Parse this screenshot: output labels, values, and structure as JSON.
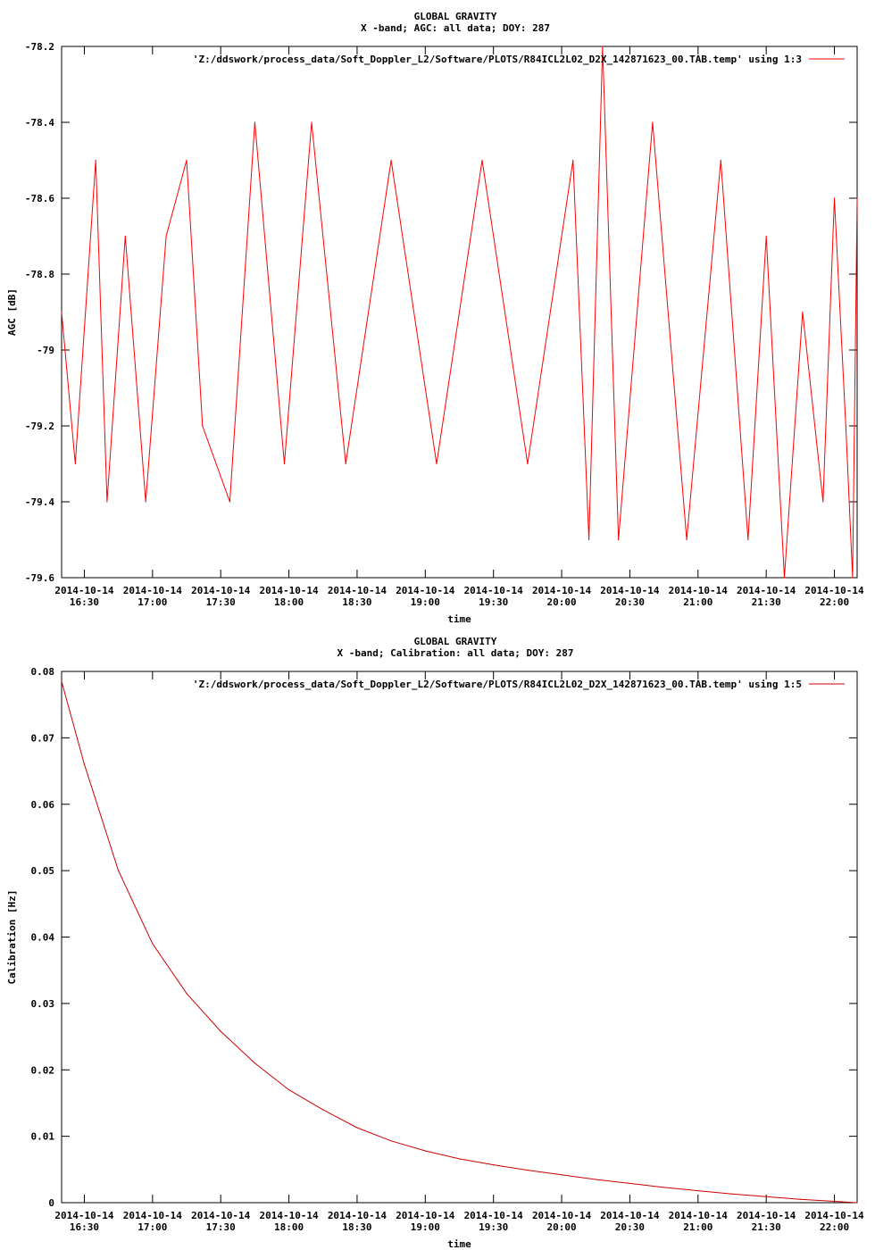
{
  "chart_data": [
    {
      "type": "line",
      "title": "GLOBAL GRAVITY",
      "subtitle": "X -band; AGC: all data; DOY: 287",
      "xlabel": "time",
      "ylabel": "AGC [dB]",
      "ylim": [
        -79.6,
        -78.2
      ],
      "yticks": [
        -78.2,
        -78.4,
        -78.6,
        -78.8,
        -79,
        -79.2,
        -79.4,
        -79.6
      ],
      "ytick_labels": [
        "-78.2",
        "-78.4",
        "-78.6",
        "-78.8",
        "-79",
        "-79.2",
        "-79.4",
        "-79.6"
      ],
      "xlim": [
        "2014-10-14 16:20",
        "2014-10-14 22:10"
      ],
      "xticks": [
        "2014-10-14 16:30",
        "2014-10-14 17:00",
        "2014-10-14 17:30",
        "2014-10-14 18:00",
        "2014-10-14 18:30",
        "2014-10-14 19:00",
        "2014-10-14 19:30",
        "2014-10-14 20:00",
        "2014-10-14 20:30",
        "2014-10-14 21:00",
        "2014-10-14 21:30",
        "2014-10-14 22:00"
      ],
      "xtick_dates": [
        "2014-10-14",
        "2014-10-14",
        "2014-10-14",
        "2014-10-14",
        "2014-10-14",
        "2014-10-14",
        "2014-10-14",
        "2014-10-14",
        "2014-10-14",
        "2014-10-14",
        "2014-10-14",
        "2014-10-14"
      ],
      "xtick_times": [
        "16:30",
        "17:00",
        "17:30",
        "18:00",
        "18:30",
        "19:00",
        "19:30",
        "20:00",
        "20:30",
        "21:00",
        "21:30",
        "22:00"
      ],
      "grid": false,
      "legend_position": "top-right",
      "series": [
        {
          "name": "'Z:/ddswork/process_data/Soft_Doppler_L2/Software/PLOTS/R84ICL2L02_D2X_142871623_00.TAB.temp' using 1:3",
          "color": "#ff0000",
          "x": [
            "2014-10-14 16:20",
            "2014-10-14 16:26",
            "2014-10-14 16:35",
            "2014-10-14 16:40",
            "2014-10-14 16:48",
            "2014-10-14 16:57",
            "2014-10-14 17:06",
            "2014-10-14 17:15",
            "2014-10-14 17:22",
            "2014-10-14 17:34",
            "2014-10-14 17:45",
            "2014-10-14 17:58",
            "2014-10-14 18:10",
            "2014-10-14 18:25",
            "2014-10-14 18:45",
            "2014-10-14 19:05",
            "2014-10-14 19:25",
            "2014-10-14 19:45",
            "2014-10-14 20:05",
            "2014-10-14 20:12",
            "2014-10-14 20:18",
            "2014-10-14 20:25",
            "2014-10-14 20:40",
            "2014-10-14 20:55",
            "2014-10-14 21:10",
            "2014-10-14 21:22",
            "2014-10-14 21:30",
            "2014-10-14 21:38",
            "2014-10-14 21:46",
            "2014-10-14 21:55",
            "2014-10-14 22:00",
            "2014-10-14 22:05",
            "2014-10-14 22:08",
            "2014-10-14 22:10"
          ],
          "y": [
            -78.9,
            -79.3,
            -78.5,
            -79.4,
            -78.7,
            -79.4,
            -78.7,
            -78.5,
            -79.2,
            -79.4,
            -78.4,
            -79.3,
            -78.4,
            -79.3,
            -78.5,
            -79.3,
            -78.5,
            -79.3,
            -78.5,
            -79.5,
            -78.2,
            -79.5,
            -78.4,
            -79.5,
            -78.5,
            -79.5,
            -78.7,
            -79.6,
            -78.9,
            -79.4,
            -78.6,
            -79.2,
            -79.6,
            -78.6
          ]
        }
      ]
    },
    {
      "type": "line",
      "title": "GLOBAL GRAVITY",
      "subtitle": "X -band; Calibration: all data; DOY: 287",
      "xlabel": "time",
      "ylabel": "Calibration [Hz]",
      "ylim": [
        0,
        0.08
      ],
      "yticks": [
        0,
        0.01,
        0.02,
        0.03,
        0.04,
        0.05,
        0.06,
        0.07,
        0.08
      ],
      "ytick_labels": [
        "0",
        "0.01",
        "0.02",
        "0.03",
        "0.04",
        "0.05",
        "0.06",
        "0.07",
        "0.08"
      ],
      "xlim": [
        "2014-10-14 16:20",
        "2014-10-14 22:10"
      ],
      "xticks": [
        "2014-10-14 16:30",
        "2014-10-14 17:00",
        "2014-10-14 17:30",
        "2014-10-14 18:00",
        "2014-10-14 18:30",
        "2014-10-14 19:00",
        "2014-10-14 19:30",
        "2014-10-14 20:00",
        "2014-10-14 20:30",
        "2014-10-14 21:00",
        "2014-10-14 21:30",
        "2014-10-14 22:00"
      ],
      "xtick_dates": [
        "2014-10-14",
        "2014-10-14",
        "2014-10-14",
        "2014-10-14",
        "2014-10-14",
        "2014-10-14",
        "2014-10-14",
        "2014-10-14",
        "2014-10-14",
        "2014-10-14",
        "2014-10-14",
        "2014-10-14"
      ],
      "xtick_times": [
        "16:30",
        "17:00",
        "17:30",
        "18:00",
        "18:30",
        "19:00",
        "19:30",
        "20:00",
        "20:30",
        "21:00",
        "21:30",
        "22:00"
      ],
      "grid": false,
      "legend_position": "top-right",
      "series": [
        {
          "name": "'Z:/ddswork/process_data/Soft_Doppler_L2/Software/PLOTS/R84ICL2L02_D2X_142871623_00.TAB.temp' using 1:5",
          "color": "#cc0000",
          "x": [
            "2014-10-14 16:20",
            "2014-10-14 16:30",
            "2014-10-14 16:45",
            "2014-10-14 17:00",
            "2014-10-14 17:15",
            "2014-10-14 17:30",
            "2014-10-14 17:45",
            "2014-10-14 18:00",
            "2014-10-14 18:15",
            "2014-10-14 18:30",
            "2014-10-14 18:45",
            "2014-10-14 19:00",
            "2014-10-14 19:15",
            "2014-10-14 19:30",
            "2014-10-14 19:45",
            "2014-10-14 20:00",
            "2014-10-14 20:15",
            "2014-10-14 20:30",
            "2014-10-14 20:45",
            "2014-10-14 21:00",
            "2014-10-14 21:15",
            "2014-10-14 21:30",
            "2014-10-14 21:45",
            "2014-10-14 22:00",
            "2014-10-14 22:10"
          ],
          "y": [
            0.0785,
            0.066,
            0.05,
            0.039,
            0.0315,
            0.0258,
            0.021,
            0.017,
            0.014,
            0.0113,
            0.0093,
            0.0078,
            0.0066,
            0.0057,
            0.0049,
            0.0042,
            0.0035,
            0.0029,
            0.0023,
            0.0018,
            0.0013,
            0.0009,
            0.0005,
            0.0002,
            0.0
          ]
        }
      ]
    }
  ]
}
